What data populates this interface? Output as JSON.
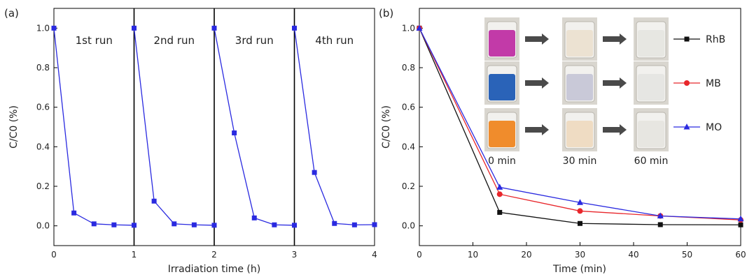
{
  "chart_data": [
    {
      "panel_label": "(a)",
      "type": "line",
      "xlabel": "Irradiation time (h)",
      "ylabel": "C/C0 (%)",
      "xlim": [
        0,
        4
      ],
      "ylim": [
        -0.1,
        1.1
      ],
      "x_ticks": [
        "0",
        "1",
        "2",
        "3",
        "4"
      ],
      "y_ticks": [
        "0.0",
        "0.2",
        "0.4",
        "0.6",
        "0.8",
        "1.0"
      ],
      "run_labels": [
        "1st run",
        "2nd run",
        "3rd run",
        "4th run"
      ],
      "color": "#2a2ae0",
      "marker": "square",
      "runs": [
        {
          "x": [
            0,
            0.25,
            0.5,
            0.75,
            1.0
          ],
          "y": [
            1.0,
            0.065,
            0.01,
            0.005,
            0.003
          ]
        },
        {
          "x": [
            1.0,
            1.25,
            1.5,
            1.75,
            2.0
          ],
          "y": [
            1.0,
            0.125,
            0.01,
            0.005,
            0.003
          ]
        },
        {
          "x": [
            2.0,
            2.25,
            2.5,
            2.75,
            3.0
          ],
          "y": [
            1.0,
            0.47,
            0.04,
            0.005,
            0.003
          ]
        },
        {
          "x": [
            3.0,
            3.25,
            3.5,
            3.75,
            4.0
          ],
          "y": [
            1.0,
            0.27,
            0.012,
            0.005,
            0.006
          ]
        }
      ]
    },
    {
      "panel_label": "(b)",
      "type": "line",
      "xlabel": "Time (min)",
      "ylabel": "C/C0 (%)",
      "xlim": [
        0,
        60
      ],
      "ylim": [
        -0.1,
        1.1
      ],
      "x_ticks": [
        "0",
        "10",
        "20",
        "30",
        "40",
        "50",
        "60"
      ],
      "y_ticks": [
        "0.0",
        "0.2",
        "0.4",
        "0.6",
        "0.8",
        "1.0"
      ],
      "x": [
        0,
        15,
        30,
        45,
        60
      ],
      "series": [
        {
          "name": "RhB",
          "color": "#111111",
          "marker": "square",
          "values": [
            1.0,
            0.068,
            0.012,
            0.006,
            0.005
          ]
        },
        {
          "name": "MB",
          "color": "#e8262b",
          "marker": "circle",
          "values": [
            1.0,
            0.16,
            0.075,
            0.05,
            0.03
          ]
        },
        {
          "name": "MO",
          "color": "#2a2ae0",
          "marker": "triangle",
          "values": [
            1.0,
            0.195,
            0.118,
            0.05,
            0.035
          ]
        }
      ],
      "legend_position": "right",
      "inset": {
        "time_labels": [
          "0 min",
          "30 min",
          "60 min"
        ],
        "rows": [
          {
            "dye": "RhB",
            "colors": [
              "#c23aa8",
              "#ece2d2",
              "#e7e7e2"
            ]
          },
          {
            "dye": "MB",
            "colors": [
              "#2a63b8",
              "#c9c9d8",
              "#e6e6e3"
            ]
          },
          {
            "dye": "MO",
            "colors": [
              "#f08c2c",
              "#efdcc3",
              "#e7e6e1"
            ]
          }
        ]
      }
    }
  ]
}
